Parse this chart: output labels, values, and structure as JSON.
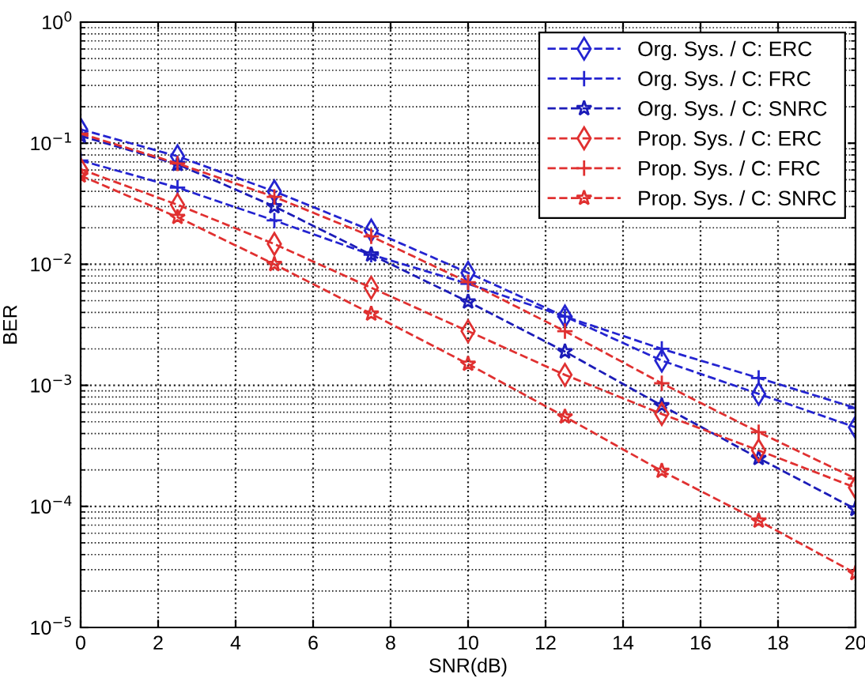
{
  "chart_data": {
    "type": "line",
    "xlabel": "SNR(dB)",
    "ylabel": "BER",
    "log": "y",
    "grid": true,
    "legend": "top right",
    "line_style": "dashed",
    "x": [
      0,
      2.5,
      5,
      7.5,
      10,
      12.5,
      15,
      17.5,
      20
    ],
    "xlim": [
      0,
      20
    ],
    "xticks": [
      0,
      2,
      4,
      6,
      8,
      10,
      12,
      14,
      16,
      18,
      20
    ],
    "ylim": [
      1e-05,
      1
    ],
    "yticks": [
      {
        "value": 1e-05,
        "label": "10$^{−5}$"
      },
      {
        "value": 0.0001,
        "label": "10$^{−4}$"
      },
      {
        "value": 0.001,
        "label": "10$^{−3}$"
      },
      {
        "value": 0.01,
        "label": "10$^{−2}$"
      },
      {
        "value": 0.1,
        "label": "10$^{−1}$"
      },
      {
        "value": 1,
        "label": "10$^{0}$"
      }
    ],
    "series": [
      {
        "name": "Org. Sys. / C: ERC",
        "color": "#2424d0",
        "marker": "diamond",
        "values": [
          0.13,
          0.078,
          0.04,
          0.019,
          0.0085,
          0.0037,
          0.0016,
          0.00085,
          0.00045
        ]
      },
      {
        "name": "Org. Sys. / C: FRC",
        "color": "#2424d0",
        "marker": "cross",
        "values": [
          0.072,
          0.043,
          0.023,
          0.012,
          0.0069,
          0.0037,
          0.002,
          0.00115,
          0.00065
        ]
      },
      {
        "name": "Org. Sys. / C: SNRC",
        "color": "#1c1cb8",
        "marker": "star",
        "values": [
          0.115,
          0.067,
          0.03,
          0.012,
          0.0049,
          0.0019,
          0.00068,
          0.00025,
          9.5e-05
        ]
      },
      {
        "name": "Prop. Sys. / C: ERC",
        "color": "#e03030",
        "marker": "diamond",
        "values": [
          0.061,
          0.031,
          0.0147,
          0.0064,
          0.0028,
          0.00122,
          0.00058,
          0.00029,
          0.000143
        ]
      },
      {
        "name": "Prop. Sys. / C: FRC",
        "color": "#e03030",
        "marker": "cross",
        "values": [
          0.12,
          0.068,
          0.036,
          0.017,
          0.0071,
          0.0028,
          0.00104,
          0.00041,
          0.00017
        ]
      },
      {
        "name": "Prop. Sys. / C: SNRC",
        "color": "#e03030",
        "marker": "star",
        "values": [
          0.054,
          0.0245,
          0.01,
          0.0039,
          0.0015,
          0.00055,
          0.000196,
          7.6e-05,
          2.8e-05
        ]
      }
    ]
  }
}
